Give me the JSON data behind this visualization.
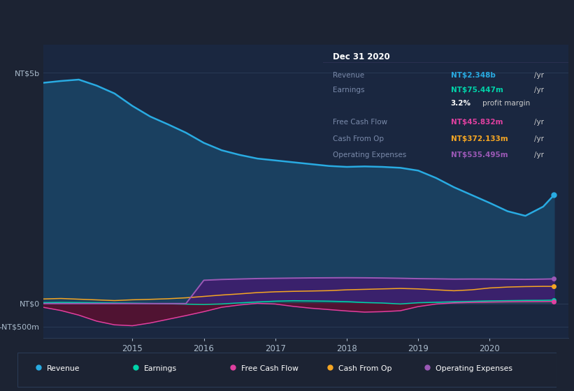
{
  "bg_color": "#1c2333",
  "plot_bg_color": "#1a2740",
  "grid_color": "#2a3a55",
  "years": [
    2013.75,
    2014.0,
    2014.25,
    2014.5,
    2014.75,
    2015.0,
    2015.25,
    2015.5,
    2015.75,
    2016.0,
    2016.25,
    2016.5,
    2016.75,
    2017.0,
    2017.25,
    2017.5,
    2017.75,
    2018.0,
    2018.25,
    2018.5,
    2018.75,
    2019.0,
    2019.25,
    2019.5,
    2019.75,
    2020.0,
    2020.25,
    2020.5,
    2020.75,
    2020.9
  ],
  "revenue": [
    4780000000.0,
    4820000000.0,
    4850000000.0,
    4720000000.0,
    4550000000.0,
    4280000000.0,
    4050000000.0,
    3880000000.0,
    3700000000.0,
    3480000000.0,
    3320000000.0,
    3220000000.0,
    3140000000.0,
    3100000000.0,
    3060000000.0,
    3020000000.0,
    2980000000.0,
    2960000000.0,
    2970000000.0,
    2960000000.0,
    2940000000.0,
    2880000000.0,
    2720000000.0,
    2520000000.0,
    2350000000.0,
    2180000000.0,
    2000000000.0,
    1900000000.0,
    2100000000.0,
    2350000000.0
  ],
  "earnings": [
    20000000.0,
    25000000.0,
    22000000.0,
    18000000.0,
    12000000.0,
    8000000.0,
    2000000.0,
    -5000000.0,
    -12000000.0,
    -18000000.0,
    -8000000.0,
    15000000.0,
    35000000.0,
    52000000.0,
    62000000.0,
    58000000.0,
    52000000.0,
    42000000.0,
    22000000.0,
    12000000.0,
    -8000000.0,
    18000000.0,
    28000000.0,
    38000000.0,
    48000000.0,
    58000000.0,
    63000000.0,
    68000000.0,
    70000000.0,
    75000000.0
  ],
  "free_cash_flow": [
    -80000000.0,
    -150000000.0,
    -250000000.0,
    -380000000.0,
    -460000000.0,
    -480000000.0,
    -420000000.0,
    -340000000.0,
    -260000000.0,
    -175000000.0,
    -80000000.0,
    -30000000.0,
    5000000.0,
    -10000000.0,
    -60000000.0,
    -100000000.0,
    -130000000.0,
    -160000000.0,
    -185000000.0,
    -175000000.0,
    -155000000.0,
    -65000000.0,
    -10000000.0,
    15000000.0,
    25000000.0,
    32000000.0,
    38000000.0,
    42000000.0,
    44000000.0,
    46000000.0
  ],
  "cash_from_op": [
    100000000.0,
    110000000.0,
    95000000.0,
    80000000.0,
    65000000.0,
    82000000.0,
    92000000.0,
    105000000.0,
    125000000.0,
    155000000.0,
    185000000.0,
    210000000.0,
    238000000.0,
    255000000.0,
    265000000.0,
    272000000.0,
    280000000.0,
    298000000.0,
    308000000.0,
    318000000.0,
    328000000.0,
    318000000.0,
    298000000.0,
    278000000.0,
    298000000.0,
    338000000.0,
    358000000.0,
    368000000.0,
    373000000.0,
    372000000.0
  ],
  "operating_expenses": [
    0,
    0,
    0,
    0,
    0,
    0,
    0,
    0,
    0,
    505000000.0,
    522000000.0,
    532000000.0,
    542000000.0,
    547000000.0,
    552000000.0,
    556000000.0,
    558000000.0,
    560000000.0,
    558000000.0,
    554000000.0,
    548000000.0,
    540000000.0,
    536000000.0,
    530000000.0,
    532000000.0,
    531000000.0,
    528000000.0,
    525000000.0,
    530000000.0,
    535000000.0
  ],
  "revenue_color": "#29abe2",
  "earnings_color": "#00d4aa",
  "free_cash_flow_color": "#e040a0",
  "cash_from_op_color": "#f5a623",
  "operating_expenses_color": "#9b59b6",
  "revenue_fill": "#1a4060",
  "operating_expenses_fill": "#3d1f6e",
  "fcf_fill": "#5a1030",
  "info_box": {
    "date": "Dec 31 2020",
    "revenue_label": "Revenue",
    "revenue_value": "NT$2.348b",
    "revenue_color": "#29abe2",
    "earnings_label": "Earnings",
    "earnings_value": "NT$75.447m",
    "earnings_color": "#00d4aa",
    "profit_margin": "3.2%",
    "fcf_label": "Free Cash Flow",
    "fcf_value": "NT$45.832m",
    "fcf_color": "#e040a0",
    "cashop_label": "Cash From Op",
    "cashop_value": "NT$372.133m",
    "cashop_color": "#f5a623",
    "opex_label": "Operating Expenses",
    "opex_value": "NT$535.495m",
    "opex_color": "#9b59b6"
  },
  "legend_items": [
    {
      "label": "Revenue",
      "color": "#29abe2"
    },
    {
      "label": "Earnings",
      "color": "#00d4aa"
    },
    {
      "label": "Free Cash Flow",
      "color": "#e040a0"
    },
    {
      "label": "Cash From Op",
      "color": "#f5a623"
    },
    {
      "label": "Operating Expenses",
      "color": "#9b59b6"
    }
  ],
  "xlim": [
    2013.75,
    2021.1
  ],
  "ylim": [
    -750000000.0,
    5600000000.0
  ],
  "yticks": [
    -500000000.0,
    0,
    5000000000.0
  ],
  "ytick_labels": [
    "-NT$500m",
    "NT$0",
    "NT$5b"
  ],
  "xticks": [
    2015,
    2016,
    2017,
    2018,
    2019,
    2020
  ],
  "xtick_labels": [
    "2015",
    "2016",
    "2017",
    "2018",
    "2019",
    "2020"
  ]
}
